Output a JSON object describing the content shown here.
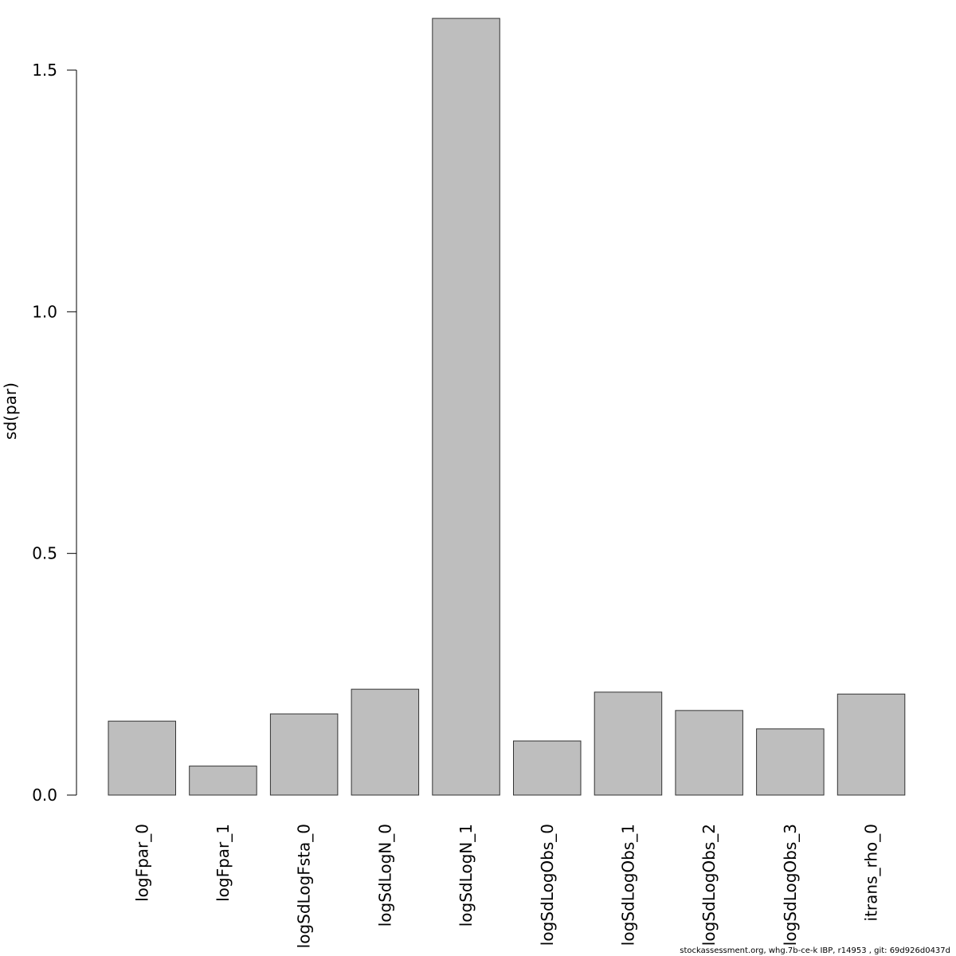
{
  "chart_data": {
    "type": "bar",
    "title": "",
    "xlabel": "",
    "ylabel": "sd(par)",
    "ylim": [
      0,
      1.6
    ],
    "yticks": [
      0.0,
      0.5,
      1.0,
      1.5
    ],
    "ytick_labels": [
      "0.0",
      "0.5",
      "1.0",
      "1.5"
    ],
    "categories": [
      "logFpar_0",
      "logFpar_1",
      "logSdLogFsta_0",
      "logSdLogN_0",
      "logSdLogN_1",
      "logSdLogObs_0",
      "logSdLogObs_1",
      "logSdLogObs_2",
      "logSdLogObs_3",
      "itrans_rho_0"
    ],
    "values": [
      0.153,
      0.06,
      0.168,
      0.219,
      1.607,
      0.112,
      0.213,
      0.175,
      0.137,
      0.209
    ],
    "bar_color": "#bebebe",
    "bar_edge_color": "#333333",
    "grid": false,
    "legend": "none"
  },
  "footer": {
    "text": "stockassessment.org, whg.7b-ce-k  IBP, r14953 , git: 69d926d0437d"
  }
}
